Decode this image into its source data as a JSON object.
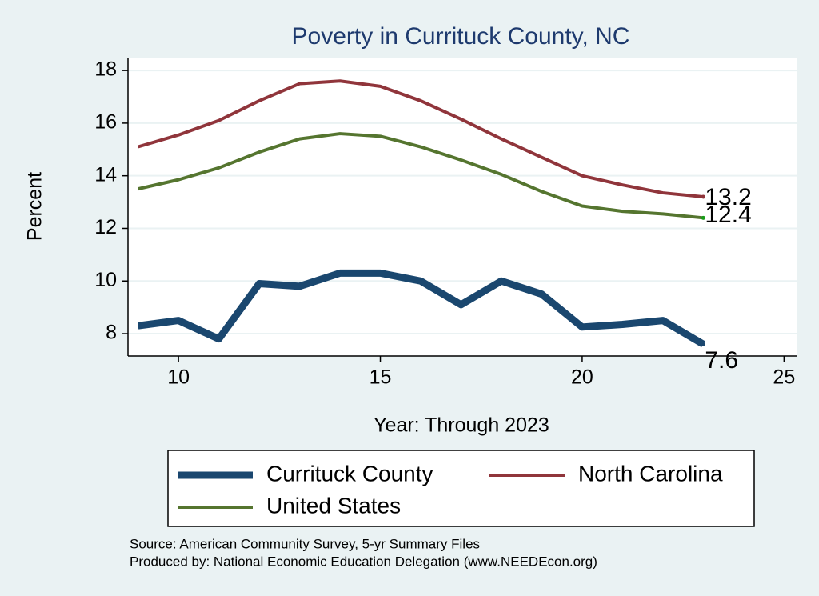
{
  "chart_data": {
    "type": "line",
    "title": "Poverty in Currituck County, NC",
    "xlabel": "Year: Through 2023",
    "ylabel": "Percent",
    "x": [
      9,
      10,
      11,
      12,
      13,
      14,
      15,
      16,
      17,
      18,
      19,
      20,
      21,
      22,
      23
    ],
    "series": [
      {
        "name": "Currituck County",
        "color": "#1a476f",
        "width": 9,
        "values": [
          8.3,
          8.5,
          7.8,
          9.9,
          9.8,
          10.3,
          10.3,
          10.0,
          9.1,
          10.0,
          9.5,
          8.25,
          8.35,
          8.5,
          7.6
        ]
      },
      {
        "name": "North Carolina",
        "color": "#90353b",
        "width": 4,
        "values": [
          15.1,
          15.55,
          16.1,
          16.85,
          17.5,
          17.6,
          17.4,
          16.85,
          16.15,
          15.4,
          14.7,
          14.0,
          13.65,
          13.35,
          13.2
        ]
      },
      {
        "name": "United States",
        "color": "#55752f",
        "width": 4,
        "values": [
          13.5,
          13.85,
          14.3,
          14.9,
          15.4,
          15.6,
          15.5,
          15.1,
          14.6,
          14.05,
          13.4,
          12.85,
          12.65,
          12.55,
          12.4
        ]
      }
    ],
    "xlim": [
      8.75,
      25.33
    ],
    "ylim": [
      7.15,
      18.49
    ],
    "xticks": [
      10,
      15,
      20,
      25
    ],
    "yticks": [
      8,
      10,
      12,
      14,
      16,
      18
    ],
    "grid": true,
    "legend": "bottom",
    "notes": [
      "Source: American Community Survey, 5-yr Summary Files",
      "Produced by: National Economic Education Delegation (www.NEEDEcon.org)"
    ]
  }
}
